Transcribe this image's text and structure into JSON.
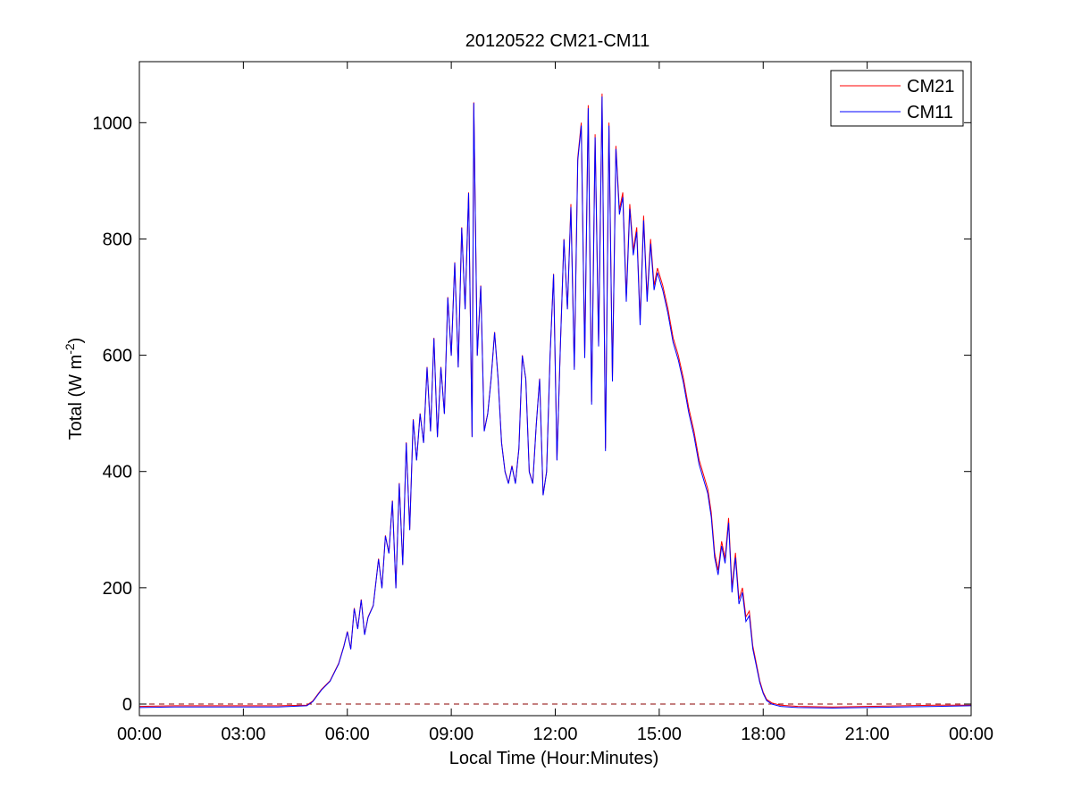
{
  "chart_data": {
    "type": "line",
    "title": "20120522 CM21-CM11",
    "xlabel": "Local Time (Hour:Minutes)",
    "ylabel_main": "Total (W m",
    "ylabel_sup": "-2",
    "ylabel_close": ")",
    "xlim_hours": [
      0,
      24
    ],
    "ylim": [
      -20,
      1105
    ],
    "x_ticks_hours": [
      0,
      3,
      6,
      9,
      12,
      15,
      18,
      21,
      24
    ],
    "x_tick_labels": [
      "00:00",
      "03:00",
      "06:00",
      "09:00",
      "12:00",
      "15:00",
      "18:00",
      "21:00",
      "00:00"
    ],
    "y_ticks": [
      0,
      200,
      400,
      600,
      800,
      1000
    ],
    "y_tick_labels": [
      "0",
      "200",
      "400",
      "600",
      "800",
      "1000"
    ],
    "grid": false,
    "legend_position": "top-right",
    "zero_reference_line": {
      "value": 0,
      "style": "dashed",
      "color": "#8b0000"
    },
    "series": [
      {
        "name": "CM21",
        "color": "#ff0000",
        "x_hours": [
          0.0,
          1.0,
          2.0,
          3.0,
          4.0,
          4.83,
          5.0,
          5.25,
          5.5,
          5.75,
          5.9,
          6.0,
          6.1,
          6.2,
          6.3,
          6.4,
          6.5,
          6.6,
          6.75,
          6.9,
          7.0,
          7.1,
          7.2,
          7.3,
          7.4,
          7.5,
          7.6,
          7.7,
          7.8,
          7.9,
          8.0,
          8.1,
          8.2,
          8.3,
          8.4,
          8.5,
          8.6,
          8.7,
          8.8,
          8.9,
          9.0,
          9.1,
          9.2,
          9.3,
          9.4,
          9.5,
          9.6,
          9.65,
          9.75,
          9.85,
          9.95,
          10.05,
          10.15,
          10.25,
          10.35,
          10.45,
          10.55,
          10.65,
          10.75,
          10.85,
          10.95,
          11.05,
          11.15,
          11.25,
          11.35,
          11.45,
          11.55,
          11.65,
          11.75,
          11.85,
          11.95,
          12.05,
          12.15,
          12.25,
          12.35,
          12.45,
          12.55,
          12.65,
          12.75,
          12.85,
          12.95,
          13.05,
          13.15,
          13.25,
          13.35,
          13.45,
          13.55,
          13.65,
          13.75,
          13.85,
          13.95,
          14.05,
          14.15,
          14.25,
          14.35,
          14.45,
          14.55,
          14.65,
          14.75,
          14.85,
          14.95,
          15.1,
          15.25,
          15.4,
          15.55,
          15.7,
          15.85,
          16.0,
          16.15,
          16.3,
          16.4,
          16.5,
          16.6,
          16.7,
          16.8,
          16.9,
          17.0,
          17.1,
          17.2,
          17.3,
          17.4,
          17.5,
          17.6,
          17.7,
          17.8,
          17.9,
          18.0,
          18.1,
          18.25,
          18.5,
          19.0,
          20.0,
          21.0,
          22.0,
          23.0,
          24.0
        ],
        "values": [
          -4,
          -3,
          -3,
          -3,
          -3,
          -2,
          5,
          25,
          40,
          70,
          100,
          125,
          95,
          165,
          130,
          180,
          120,
          150,
          170,
          250,
          200,
          290,
          260,
          350,
          200,
          380,
          240,
          450,
          300,
          490,
          420,
          500,
          450,
          580,
          470,
          630,
          460,
          580,
          500,
          700,
          600,
          760,
          580,
          820,
          680,
          880,
          460,
          1035,
          600,
          720,
          470,
          500,
          560,
          640,
          560,
          450,
          400,
          380,
          410,
          380,
          440,
          600,
          560,
          400,
          380,
          480,
          560,
          360,
          400,
          600,
          740,
          420,
          620,
          800,
          680,
          860,
          580,
          940,
          1000,
          600,
          1030,
          520,
          980,
          620,
          1050,
          440,
          1000,
          560,
          960,
          850,
          880,
          700,
          860,
          780,
          820,
          660,
          840,
          700,
          800,
          720,
          750,
          720,
          680,
          630,
          600,
          560,
          510,
          470,
          420,
          390,
          370,
          330,
          260,
          230,
          280,
          250,
          320,
          200,
          260,
          180,
          200,
          150,
          160,
          100,
          70,
          40,
          20,
          8,
          2,
          -2,
          -4,
          -5,
          -4,
          -3,
          -2,
          -2
        ]
      },
      {
        "name": "CM11",
        "color": "#0000ff",
        "x_hours": [
          0.0,
          1.0,
          2.0,
          3.0,
          4.0,
          4.83,
          5.0,
          5.25,
          5.5,
          5.75,
          5.9,
          6.0,
          6.1,
          6.2,
          6.3,
          6.4,
          6.5,
          6.6,
          6.75,
          6.9,
          7.0,
          7.1,
          7.2,
          7.3,
          7.4,
          7.5,
          7.6,
          7.7,
          7.8,
          7.9,
          8.0,
          8.1,
          8.2,
          8.3,
          8.4,
          8.5,
          8.6,
          8.7,
          8.8,
          8.9,
          9.0,
          9.1,
          9.2,
          9.3,
          9.4,
          9.5,
          9.6,
          9.65,
          9.75,
          9.85,
          9.95,
          10.05,
          10.15,
          10.25,
          10.35,
          10.45,
          10.55,
          10.65,
          10.75,
          10.85,
          10.95,
          11.05,
          11.15,
          11.25,
          11.35,
          11.45,
          11.55,
          11.65,
          11.75,
          11.85,
          11.95,
          12.05,
          12.15,
          12.25,
          12.35,
          12.45,
          12.55,
          12.65,
          12.75,
          12.85,
          12.95,
          13.05,
          13.15,
          13.25,
          13.35,
          13.45,
          13.55,
          13.65,
          13.75,
          13.85,
          13.95,
          14.05,
          14.15,
          14.25,
          14.35,
          14.45,
          14.55,
          14.65,
          14.75,
          14.85,
          14.95,
          15.1,
          15.25,
          15.4,
          15.55,
          15.7,
          15.85,
          16.0,
          16.15,
          16.3,
          16.4,
          16.5,
          16.6,
          16.7,
          16.8,
          16.9,
          17.0,
          17.1,
          17.2,
          17.3,
          17.4,
          17.5,
          17.6,
          17.7,
          17.8,
          17.9,
          18.0,
          18.1,
          18.25,
          18.5,
          19.0,
          20.0,
          21.0,
          22.0,
          23.0,
          24.0
        ],
        "values": [
          -6,
          -5,
          -5,
          -5,
          -5,
          -3,
          4,
          24,
          39,
          69,
          99,
          124,
          94,
          164,
          129,
          179,
          119,
          149,
          169,
          249,
          199,
          289,
          259,
          349,
          199,
          379,
          239,
          449,
          299,
          489,
          419,
          499,
          449,
          579,
          469,
          629,
          459,
          579,
          499,
          699,
          599,
          759,
          579,
          819,
          679,
          879,
          459,
          1034,
          599,
          719,
          469,
          499,
          559,
          639,
          559,
          449,
          399,
          379,
          409,
          379,
          439,
          599,
          559,
          399,
          379,
          479,
          559,
          359,
          399,
          599,
          739,
          419,
          619,
          799,
          679,
          855,
          575,
          935,
          995,
          595,
          1025,
          515,
          975,
          615,
          1045,
          435,
          995,
          555,
          955,
          842,
          872,
          692,
          852,
          772,
          812,
          652,
          832,
          692,
          792,
          712,
          742,
          712,
          672,
          622,
          592,
          552,
          502,
          462,
          412,
          382,
          362,
          322,
          252,
          222,
          272,
          242,
          312,
          192,
          252,
          172,
          192,
          142,
          152,
          95,
          66,
          37,
          18,
          6,
          0,
          -4,
          -6,
          -7,
          -6,
          -5,
          -4,
          -3
        ]
      }
    ]
  }
}
